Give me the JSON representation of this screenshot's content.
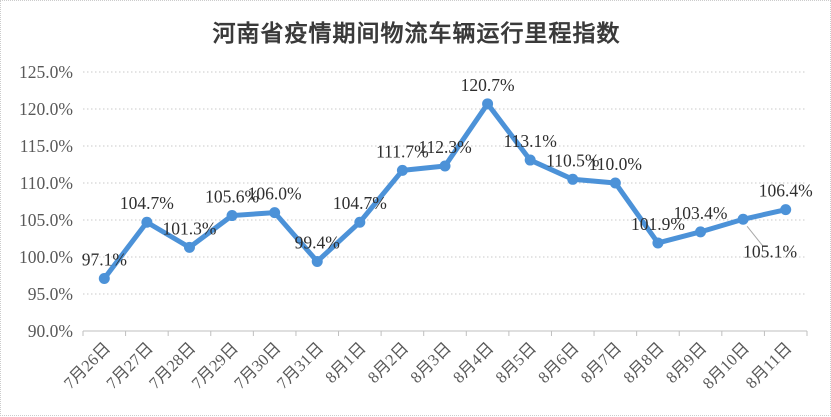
{
  "chart_data": {
    "type": "line",
    "title": "河南省疫情期间物流车辆运行里程指数",
    "categories": [
      "7月26日",
      "7月27日",
      "7月28日",
      "7月29日",
      "7月30日",
      "7月31日",
      "8月1日",
      "8月2日",
      "8月3日",
      "8月4日",
      "8月5日",
      "8月6日",
      "8月7日",
      "8月8日",
      "8月9日",
      "8月10日",
      "8月11日"
    ],
    "values": [
      97.1,
      104.7,
      101.3,
      105.6,
      106.0,
      99.4,
      104.7,
      111.7,
      112.3,
      120.7,
      113.1,
      110.5,
      110.0,
      101.9,
      103.4,
      105.1,
      106.4
    ],
    "data_labels": [
      "97.1%",
      "104.7%",
      "101.3%",
      "105.6%",
      "106.0%",
      "99.4%",
      "104.7%",
      "111.7%",
      "112.3%",
      "120.7%",
      "113.1%",
      "110.5%",
      "110.0%",
      "101.9%",
      "103.4%",
      "105.1%",
      "106.4%"
    ],
    "label_placements": [
      "above",
      "above",
      "above",
      "above",
      "above",
      "above",
      "above",
      "above",
      "above",
      "above",
      "above",
      "above",
      "above",
      "above",
      "above",
      "below-callout",
      "above"
    ],
    "ylim": [
      90,
      125
    ],
    "ytick_step": 5,
    "ytick_labels": [
      "125.0%",
      "120.0%",
      "115.0%",
      "110.0%",
      "105.0%",
      "100.0%",
      "95.0%",
      "90.0%"
    ],
    "xlabel": "",
    "ylabel": "",
    "grid": "horizontal-dotted",
    "legend": "none",
    "series_name": "里程指数",
    "colors": {
      "line": "#4c92d8",
      "marker": "#4c92d8",
      "gridline": "#c9c9c9",
      "axis": "#bfbfbf",
      "leader_line": "#a8a8a8",
      "title_text": "#3a3a3a",
      "axis_text": "#595959",
      "data_label_text": "#2e2e2e"
    }
  }
}
